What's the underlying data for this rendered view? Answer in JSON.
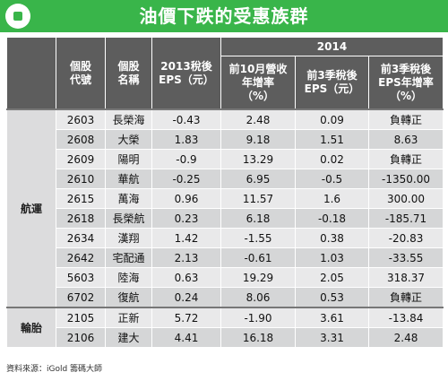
{
  "title": "油價下跌的受惠族群",
  "header": {
    "year": "2014",
    "col_code": [
      "個股",
      "代號"
    ],
    "col_name": [
      "個股",
      "名稱"
    ],
    "col_eps2013": [
      "2013稅後",
      "EPS（元）"
    ],
    "col_rev": [
      "前10月營收",
      "年增率",
      "（%）"
    ],
    "col_eps3q": [
      "前3季稅後",
      "EPS（元）"
    ],
    "col_eps3q_growth": [
      "前3季稅後",
      "EPS年增率",
      "（%）"
    ]
  },
  "groups": [
    {
      "name": "航運",
      "rows": [
        {
          "code": "2603",
          "name": "長榮海",
          "eps2013": "-0.43",
          "rev_growth": "2.48",
          "eps_3q": "0.09",
          "eps_growth": "負轉正"
        },
        {
          "code": "2608",
          "name": "大榮",
          "eps2013": "1.83",
          "rev_growth": "9.18",
          "eps_3q": "1.51",
          "eps_growth": "8.63"
        },
        {
          "code": "2609",
          "name": "陽明",
          "eps2013": "-0.9",
          "rev_growth": "13.29",
          "eps_3q": "0.02",
          "eps_growth": "負轉正"
        },
        {
          "code": "2610",
          "name": "華航",
          "eps2013": "-0.25",
          "rev_growth": "6.95",
          "eps_3q": "-0.5",
          "eps_growth": "-1350.00"
        },
        {
          "code": "2615",
          "name": "萬海",
          "eps2013": "0.96",
          "rev_growth": "11.57",
          "eps_3q": "1.6",
          "eps_growth": "300.00"
        },
        {
          "code": "2618",
          "name": "長榮航",
          "eps2013": "0.23",
          "rev_growth": "6.18",
          "eps_3q": "-0.18",
          "eps_growth": "-185.71"
        },
        {
          "code": "2634",
          "name": "漢翔",
          "eps2013": "1.42",
          "rev_growth": "-1.55",
          "eps_3q": "0.38",
          "eps_growth": "-20.83"
        },
        {
          "code": "2642",
          "name": "宅配通",
          "eps2013": "2.13",
          "rev_growth": "-0.61",
          "eps_3q": "1.03",
          "eps_growth": "-33.55"
        },
        {
          "code": "5603",
          "name": "陸海",
          "eps2013": "0.63",
          "rev_growth": "19.29",
          "eps_3q": "2.05",
          "eps_growth": "318.37"
        },
        {
          "code": "6702",
          "name": "復航",
          "eps2013": "0.24",
          "rev_growth": "8.06",
          "eps_3q": "0.53",
          "eps_growth": "負轉正"
        }
      ]
    },
    {
      "name": "輪胎",
      "rows": [
        {
          "code": "2105",
          "name": "正新",
          "eps2013": "5.72",
          "rev_growth": "-1.90",
          "eps_3q": "3.61",
          "eps_growth": "-13.84"
        },
        {
          "code": "2106",
          "name": "建大",
          "eps2013": "4.41",
          "rev_growth": "16.18",
          "eps_3q": "3.31",
          "eps_growth": "2.48"
        }
      ]
    }
  ],
  "source": "資料來源：iGold 籌碼大師",
  "colors": {
    "title_bg": "#39b54a",
    "header_bg": "#5d5d5d",
    "row_light": "#e9e9ea",
    "row_dark": "#d5d6d7"
  }
}
